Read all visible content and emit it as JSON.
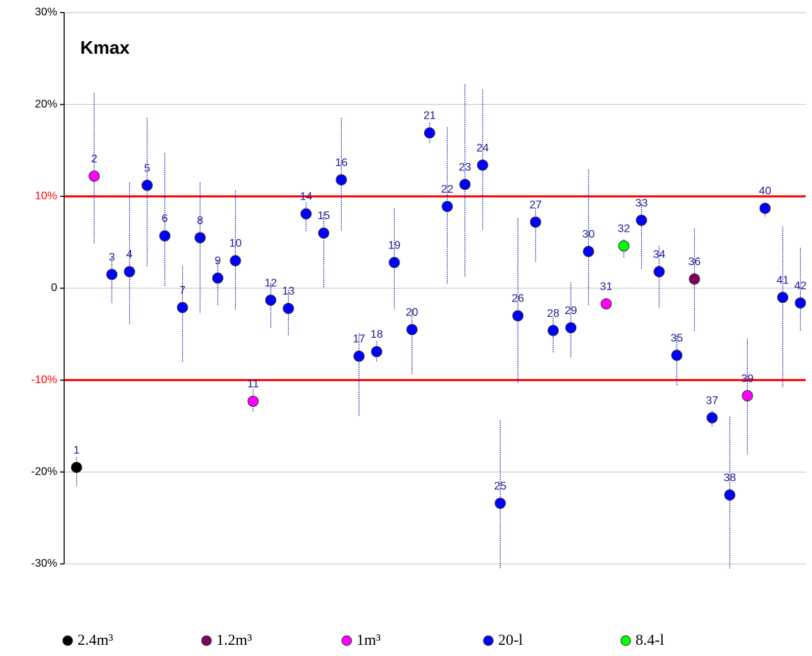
{
  "chart_data": {
    "type": "scatter",
    "title": "Kmax",
    "xlim": [
      0.3,
      42.5
    ],
    "ylim": [
      -30,
      30
    ],
    "yticks": [
      {
        "value": -30,
        "label": "-30%"
      },
      {
        "value": -20,
        "label": "-20%"
      },
      {
        "value": -10,
        "label": "-10%"
      },
      0,
      {
        "value": 10,
        "label": "10%"
      },
      {
        "value": 20,
        "label": "20%"
      },
      {
        "value": 30,
        "label": "30%"
      }
    ],
    "grid": true,
    "reference_lines": [
      10,
      -10
    ],
    "reference_color": "#ff0000",
    "error_color": "#0000aa",
    "legend": "bottom",
    "series": [
      {
        "name": "2.4m³",
        "color": "#000000",
        "x": [
          1
        ],
        "values": [
          -19.5
        ],
        "low": [
          -21.6
        ],
        "high": [
          -18.4
        ]
      },
      {
        "name": "1.2m³",
        "color": "#800060",
        "x": [
          36
        ],
        "values": [
          1.0
        ],
        "low": [
          -4.7
        ],
        "high": [
          6.5
        ]
      },
      {
        "name": "1m³",
        "color": "#ff00ff",
        "x": [
          2,
          11,
          31,
          39
        ],
        "values": [
          12.2,
          -12.3,
          -1.7,
          -11.7
        ],
        "low": [
          4.9,
          -13.4,
          -2.1,
          -18.1
        ],
        "high": [
          21.2,
          -11.0,
          -1.3,
          -5.5
        ]
      },
      {
        "name": "20-l",
        "color": "#0000ff",
        "x": [
          3,
          4,
          5,
          6,
          7,
          8,
          9,
          10,
          12,
          13,
          14,
          15,
          16,
          17,
          18,
          19,
          20,
          21,
          22,
          23,
          24,
          25,
          26,
          27,
          28,
          29,
          30,
          33,
          34,
          35,
          37,
          38,
          40,
          41,
          42
        ],
        "values": [
          1.5,
          1.8,
          11.2,
          5.7,
          -2.1,
          5.5,
          1.1,
          3.0,
          -1.3,
          -2.2,
          8.1,
          6.0,
          11.8,
          -7.4,
          -6.9,
          2.8,
          -4.5,
          16.9,
          8.9,
          11.3,
          13.4,
          -23.4,
          -3.0,
          7.2,
          -4.6,
          -4.3,
          4.0,
          7.4,
          1.8,
          -7.3,
          -14.1,
          -22.5,
          8.7,
          -1.0,
          -1.6
        ],
        "low": [
          -1.7,
          -3.9,
          2.3,
          0.2,
          -8.0,
          -2.7,
          -1.9,
          -2.4,
          -4.3,
          -5.1,
          6.2,
          0,
          6.2,
          -14.0,
          -8.0,
          -2.3,
          -9.4,
          15.8,
          0.4,
          1.2,
          6.3,
          -30.5,
          -10.3,
          2.9,
          -7.0,
          -7.6,
          -1.9,
          2.0,
          -2.1,
          -10.6,
          -15.1,
          -30.5,
          7.7,
          -10.8,
          -4.7
        ],
        "high": [
          3.3,
          11.5,
          18.5,
          14.7,
          2.4,
          11.5,
          3.1,
          10.6,
          0.6,
          -0.2,
          9.3,
          8.2,
          18.5,
          -4.9,
          -5.8,
          8.7,
          -2.3,
          18.0,
          17.5,
          22.2,
          21.6,
          -14.4,
          7.6,
          8.7,
          -3.2,
          0.6,
          12.9,
          9.3,
          4.6,
          -5.2,
          -13.3,
          -14.0,
          9.3,
          6.7,
          4.4
        ]
      },
      {
        "name": "8.4-l",
        "color": "#00ff00",
        "x": [
          32
        ],
        "values": [
          4.6
        ],
        "low": [
          3.3
        ],
        "high": [
          5.3
        ]
      }
    ]
  }
}
